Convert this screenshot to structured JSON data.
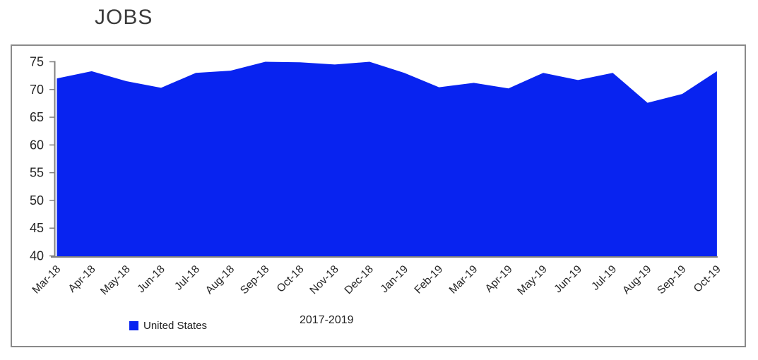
{
  "title": "JOBS",
  "chart_data": {
    "type": "area",
    "title": "JOBS",
    "categories": [
      "Mar-18",
      "Apr-18",
      "May-18",
      "Jun-18",
      "Jul-18",
      "Aug-18",
      "Sep-18",
      "Oct-18",
      "Nov-18",
      "Dec-18",
      "Jan-19",
      "Feb-19",
      "Mar-19",
      "Apr-19",
      "May-19",
      "Jun-19",
      "Jul-19",
      "Aug-19",
      "Sep-19",
      "Oct-19"
    ],
    "series": [
      {
        "name": "United States",
        "values": [
          72.0,
          73.3,
          71.5,
          70.3,
          73.0,
          73.4,
          75.0,
          74.9,
          74.5,
          75.0,
          73.0,
          70.4,
          71.2,
          70.2,
          73.0,
          71.7,
          73.0,
          67.6,
          69.2,
          73.3
        ]
      }
    ],
    "xlabel": "",
    "ylabel": "",
    "ylim": [
      40,
      75
    ],
    "yticks": [
      75,
      70,
      65,
      60,
      55,
      50,
      45,
      40
    ],
    "grid": false,
    "legend_position": "bottom",
    "footnote": "2017-2019",
    "fill_color": "#0823f0",
    "axis_color": "#808080",
    "frame_color": "#8a8a8a",
    "tick_text_color": "#262626",
    "title_color": "#3b3b3b"
  }
}
